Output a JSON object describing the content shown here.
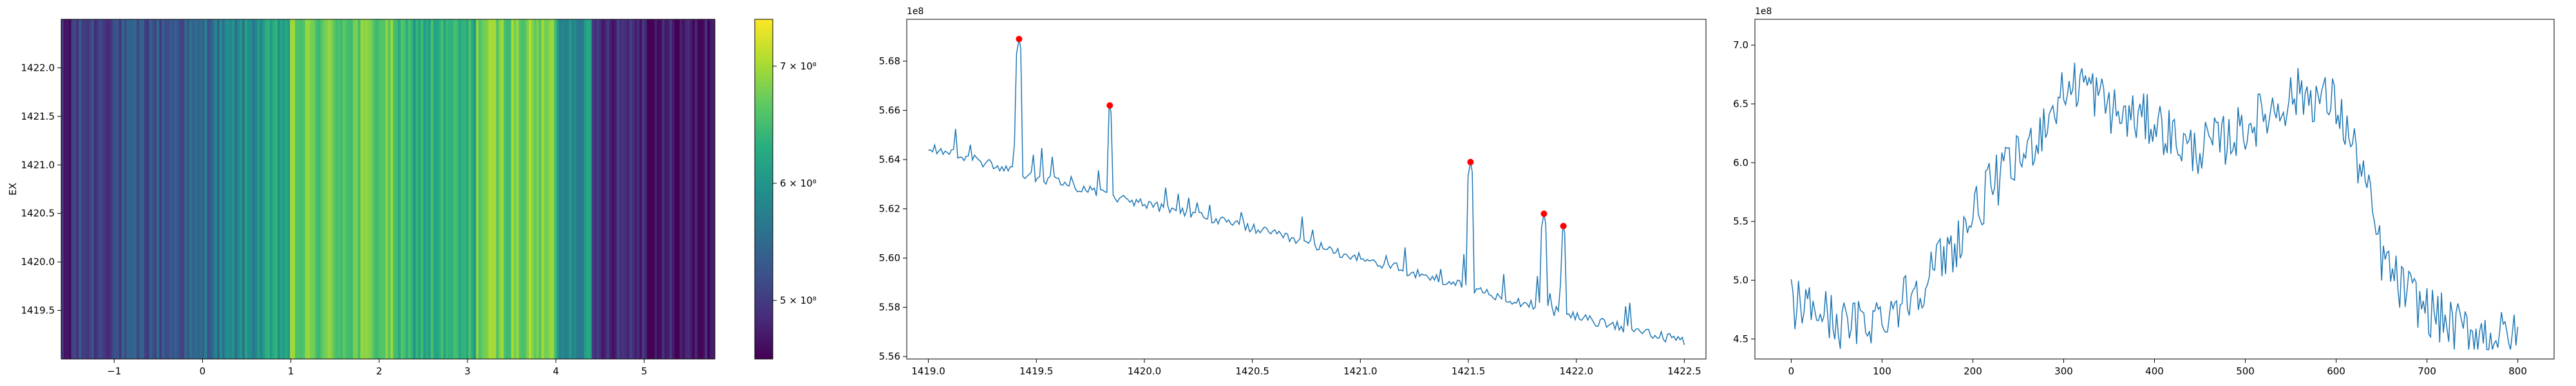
{
  "figure": {
    "background": "#ffffff"
  },
  "chart_data": [
    {
      "type": "heatmap",
      "colormap": "viridis",
      "ylabel": "EX",
      "xlabel": "",
      "xlim": [
        -1.6,
        5.8
      ],
      "ylim": [
        1419.0,
        1422.5
      ],
      "xticks": [
        -1,
        0,
        1,
        2,
        3,
        4,
        5
      ],
      "yticks": [
        1419.5,
        1420.0,
        1420.5,
        1421.0,
        1421.5,
        1422.0
      ],
      "ytick_labels": [
        "1419.5",
        "1420.0",
        "1420.5",
        "1421.0",
        "1421.5",
        "1422.0"
      ],
      "column_profile_note": "vertical stripes; intensity along x follows an envelope",
      "value_range": [
        450000000,
        740000000
      ],
      "colorbar": {
        "ticks": [
          500000000,
          600000000,
          700000000
        ],
        "tick_labels": [
          "5 × 10⁸",
          "6 × 10⁸",
          "7 × 10⁸"
        ]
      }
    },
    {
      "type": "line",
      "xlim": [
        1418.9,
        1422.6
      ],
      "ylim": [
        5.559,
        5.697
      ],
      "xticks": [
        1419.0,
        1419.5,
        1420.0,
        1420.5,
        1421.0,
        1421.5,
        1422.0,
        1422.5
      ],
      "xtick_labels": [
        "1419.0",
        "1419.5",
        "1420.0",
        "1420.5",
        "1421.0",
        "1421.5",
        "1422.0",
        "1422.5"
      ],
      "yticks": [
        5.56,
        5.58,
        5.6,
        5.62,
        5.64,
        5.66,
        5.68
      ],
      "ytick_labels": [
        "5.56",
        "5.58",
        "5.60",
        "5.62",
        "5.64",
        "5.66",
        "5.68"
      ],
      "offset_text": "1e8",
      "line_color": "#1f77b4",
      "baseline": {
        "x": [
          1419.0,
          1419.5,
          1420.0,
          1420.5,
          1421.0,
          1421.5,
          1422.0,
          1422.5
        ],
        "y": [
          5.645,
          5.633,
          5.622,
          5.612,
          5.6,
          5.588,
          5.576,
          5.566
        ]
      },
      "peaks": [
        {
          "x": 1419.42,
          "y": 5.689
        },
        {
          "x": 1419.84,
          "y": 5.662
        },
        {
          "x": 1421.51,
          "y": 5.639
        },
        {
          "x": 1421.85,
          "y": 5.618
        },
        {
          "x": 1421.94,
          "y": 5.613
        }
      ],
      "marker_color": "#ff0000"
    },
    {
      "type": "line",
      "xlim": [
        -40,
        840
      ],
      "ylim": [
        4.33,
        7.22
      ],
      "xticks": [
        0,
        100,
        200,
        300,
        400,
        500,
        600,
        700,
        800
      ],
      "xtick_labels": [
        "0",
        "100",
        "200",
        "300",
        "400",
        "500",
        "600",
        "700",
        "800"
      ],
      "yticks": [
        4.5,
        5.0,
        5.5,
        6.0,
        6.5,
        7.0
      ],
      "ytick_labels": [
        "4.5",
        "5.0",
        "5.5",
        "6.0",
        "6.5",
        "7.0"
      ],
      "offset_text": "1e8",
      "line_color": "#1f77b4",
      "envelope": {
        "x": [
          0,
          30,
          60,
          100,
          140,
          180,
          220,
          260,
          300,
          320,
          360,
          400,
          440,
          480,
          520,
          560,
          600,
          630,
          650,
          670,
          700,
          730,
          760,
          800
        ],
        "y": [
          4.8,
          4.75,
          4.6,
          4.7,
          4.95,
          5.3,
          5.8,
          6.1,
          6.6,
          6.7,
          6.4,
          6.35,
          6.1,
          6.2,
          6.4,
          6.6,
          6.5,
          5.9,
          5.2,
          4.95,
          4.75,
          4.6,
          4.55,
          4.5
        ]
      }
    }
  ]
}
